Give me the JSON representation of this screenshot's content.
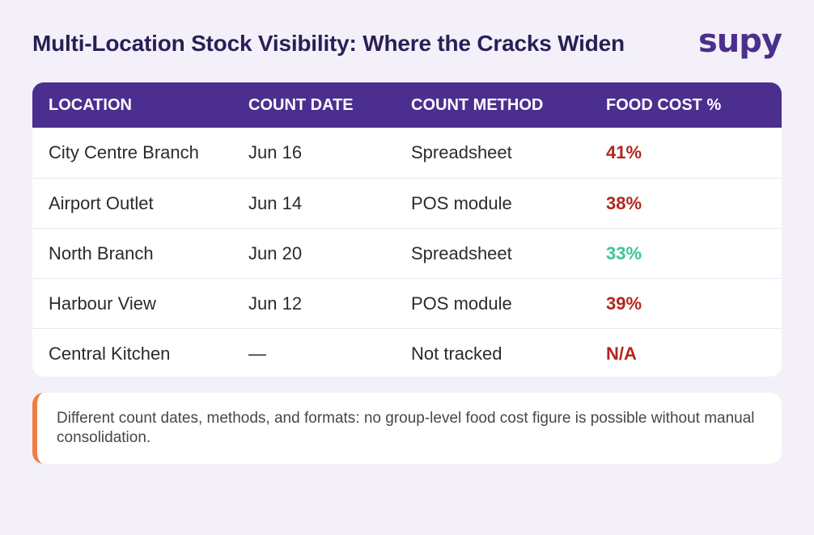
{
  "header": {
    "title": "Multi-Location Stock Visibility: Where the Cracks Widen",
    "brand": "supy"
  },
  "table": {
    "columns": [
      "LOCATION",
      "COUNT DATE",
      "COUNT METHOD",
      "FOOD COST %"
    ],
    "rows": [
      {
        "location": "City Centre Branch",
        "date": "Jun 16",
        "method": "Spreadsheet",
        "cost": "41%",
        "status": "high"
      },
      {
        "location": "Airport Outlet",
        "date": "Jun 14",
        "method": "POS module",
        "cost": "38%",
        "status": "high"
      },
      {
        "location": "North Branch",
        "date": "Jun 20",
        "method": "Spreadsheet",
        "cost": "33%",
        "status": "good"
      },
      {
        "location": "Harbour View",
        "date": "Jun 12",
        "method": "POS module",
        "cost": "39%",
        "status": "high"
      },
      {
        "location": "Central Kitchen",
        "date": "—",
        "method": "Not tracked",
        "cost": "N/A",
        "status": "high"
      }
    ]
  },
  "note": {
    "text": "Different count dates, methods, and formats: no group-level food cost figure is possible without manual consolidation."
  },
  "colors": {
    "header_bg": "#4b2e8f",
    "cost_high": "#b3261e",
    "cost_good": "#3cc39a",
    "note_accent": "#ef7d44"
  }
}
